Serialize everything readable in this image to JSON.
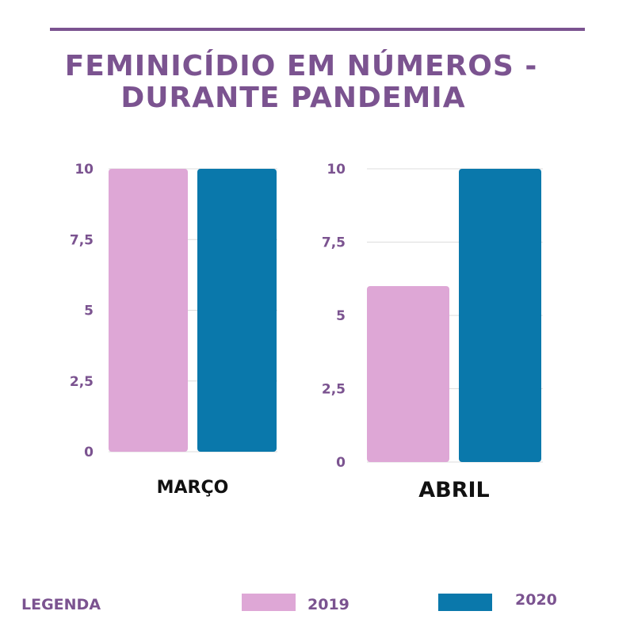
{
  "title_line1": "FEMINICÍDIO EM NÚMEROS -",
  "title_line2": "DURANTE PANDEMIA",
  "legend_title": "LEGENDA",
  "colors": {
    "accent": "#7b5390",
    "series_2019": "#dea7d6",
    "series_2020": "#0a78ab",
    "grid": "#dddddd"
  },
  "chart_data": [
    {
      "type": "bar",
      "xlabel": "MARÇO",
      "ylim": [
        0,
        10
      ],
      "yticks": [
        "0",
        "2,5",
        "5",
        "7,5",
        "10"
      ],
      "series": [
        {
          "name": "2019",
          "values": [
            10
          ]
        },
        {
          "name": "2020",
          "values": [
            10
          ]
        }
      ]
    },
    {
      "type": "bar",
      "xlabel": "ABRIL",
      "ylim": [
        0,
        10
      ],
      "yticks": [
        "0",
        "2,5",
        "5",
        "7,5",
        "10"
      ],
      "series": [
        {
          "name": "2019",
          "values": [
            6
          ]
        },
        {
          "name": "2020",
          "values": [
            10
          ]
        }
      ]
    }
  ]
}
